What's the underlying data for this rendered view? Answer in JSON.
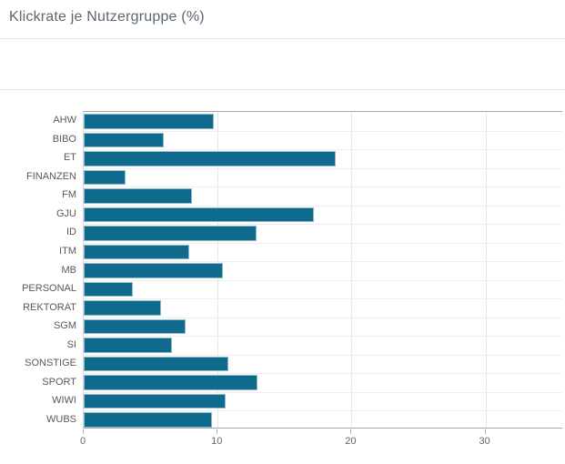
{
  "header": {
    "title": "Klickrate je Nutzergruppe (%)"
  },
  "chart_data": {
    "type": "bar",
    "orientation": "horizontal",
    "title": "Klickrate je Nutzergruppe (%)",
    "categories": [
      "AHW",
      "BIBO",
      "ET",
      "FINANZEN",
      "FM",
      "GJU",
      "ID",
      "ITM",
      "MB",
      "PERSONAL",
      "REKTORAT",
      "SGM",
      "SI",
      "SONSTIGE",
      "SPORT",
      "WIWI",
      "WUBS"
    ],
    "values": [
      9.7,
      6.0,
      18.8,
      3.1,
      8.1,
      17.2,
      12.9,
      7.9,
      10.4,
      3.7,
      5.8,
      7.6,
      6.6,
      10.8,
      13.0,
      10.6,
      9.6
    ],
    "xlabel": "",
    "ylabel": "",
    "x_ticks": [
      0,
      10,
      20,
      30
    ],
    "xlim": [
      0,
      35.8
    ],
    "grid": true,
    "legend": "none",
    "bar_color": "#0f6a8d",
    "gridline_color": "#e7e7e7",
    "axis_border_color": "#a6a6a6",
    "label_color": "#595959",
    "tick_label_color": "#666666"
  }
}
